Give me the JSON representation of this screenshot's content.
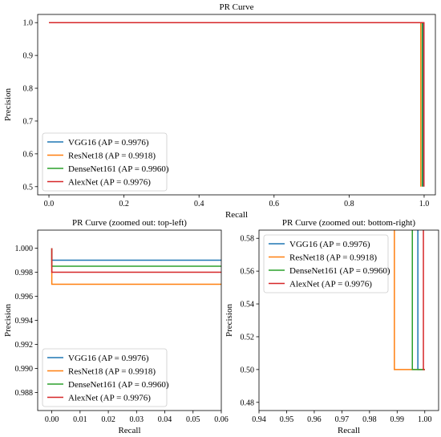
{
  "chart_data": [
    {
      "type": "line",
      "title": "PR Curve",
      "xlabel": "Recall",
      "ylabel": "Precision",
      "xlim": [
        -0.03,
        1.03
      ],
      "ylim": [
        0.475,
        1.025
      ],
      "xticks": [
        "0.0",
        "0.2",
        "0.4",
        "0.6",
        "0.8",
        "1.0"
      ],
      "yticks": [
        "0.5",
        "0.6",
        "0.7",
        "0.8",
        "0.9",
        "1.0"
      ],
      "legend_position": "lower-left",
      "series": [
        {
          "name": "VGG16 (AP = 0.9976)",
          "color": "#1f77b4",
          "x": [
            0.0,
            0.9976,
            0.9976
          ],
          "y": [
            1.0,
            1.0,
            0.5
          ]
        },
        {
          "name": "ResNet18 (AP = 0.9918)",
          "color": "#ff7f0e",
          "x": [
            0.0,
            0.991,
            0.991
          ],
          "y": [
            1.0,
            1.0,
            0.5
          ]
        },
        {
          "name": "DenseNet161 (AP = 0.9960)",
          "color": "#2ca02c",
          "x": [
            0.0,
            0.995,
            0.995
          ],
          "y": [
            1.0,
            1.0,
            0.5
          ]
        },
        {
          "name": "AlexNet (AP = 0.9976)",
          "color": "#d62728",
          "x": [
            0.0,
            0.9995,
            0.9995
          ],
          "y": [
            1.0,
            1.0,
            0.5
          ]
        }
      ]
    },
    {
      "type": "line",
      "title": "PR Curve (zoomed out: top-left)",
      "xlabel": "Recall",
      "ylabel": "Precision",
      "xlim": [
        -0.005,
        0.06
      ],
      "ylim": [
        0.9865,
        1.0015
      ],
      "xticks": [
        "0.00",
        "0.01",
        "0.02",
        "0.03",
        "0.04",
        "0.05",
        "0.06"
      ],
      "yticks": [
        "0.988",
        "0.990",
        "0.992",
        "0.994",
        "0.996",
        "0.998",
        "1.000"
      ],
      "legend_position": "lower-left",
      "series": [
        {
          "name": "VGG16 (AP = 0.9976)",
          "color": "#1f77b4",
          "x": [
            0.0,
            0.0,
            0.06
          ],
          "y": [
            1.0,
            0.999,
            0.999
          ]
        },
        {
          "name": "ResNet18 (AP = 0.9918)",
          "color": "#ff7f0e",
          "x": [
            0.0,
            0.0,
            0.06
          ],
          "y": [
            1.0,
            0.997,
            0.997
          ]
        },
        {
          "name": "DenseNet161 (AP = 0.9960)",
          "color": "#2ca02c",
          "x": [
            0.0,
            0.0,
            0.06
          ],
          "y": [
            1.0,
            0.9985,
            0.9985
          ]
        },
        {
          "name": "AlexNet (AP = 0.9976)",
          "color": "#d62728",
          "x": [
            0.0,
            0.0,
            0.06
          ],
          "y": [
            1.0,
            0.998,
            0.998
          ]
        }
      ]
    },
    {
      "type": "line",
      "title": "PR Curve (zoomed out: bottom-right)",
      "xlabel": "Recall",
      "ylabel": "Precision",
      "xlim": [
        0.94,
        1.005
      ],
      "ylim": [
        0.475,
        0.585
      ],
      "xticks": [
        "0.94",
        "0.95",
        "0.96",
        "0.97",
        "0.98",
        "0.99",
        "1.00"
      ],
      "yticks": [
        "0.48",
        "0.50",
        "0.52",
        "0.54",
        "0.56",
        "0.58"
      ],
      "legend_position": "upper-left",
      "series": [
        {
          "name": "VGG16 (AP = 0.9976)",
          "color": "#1f77b4",
          "x": [
            0.9975,
            0.9975,
            1.0
          ],
          "y": [
            0.585,
            0.5,
            0.5
          ]
        },
        {
          "name": "ResNet18 (AP = 0.9918)",
          "color": "#ff7f0e",
          "x": [
            0.989,
            0.989,
            1.0
          ],
          "y": [
            0.585,
            0.5,
            0.5
          ]
        },
        {
          "name": "DenseNet161 (AP = 0.9960)",
          "color": "#2ca02c",
          "x": [
            0.9955,
            0.9955,
            1.0
          ],
          "y": [
            0.585,
            0.5,
            0.5
          ]
        },
        {
          "name": "AlexNet (AP = 0.9976)",
          "color": "#d62728",
          "x": [
            0.9995,
            0.9995,
            1.0
          ],
          "y": [
            0.585,
            0.5,
            0.5
          ]
        }
      ]
    }
  ]
}
